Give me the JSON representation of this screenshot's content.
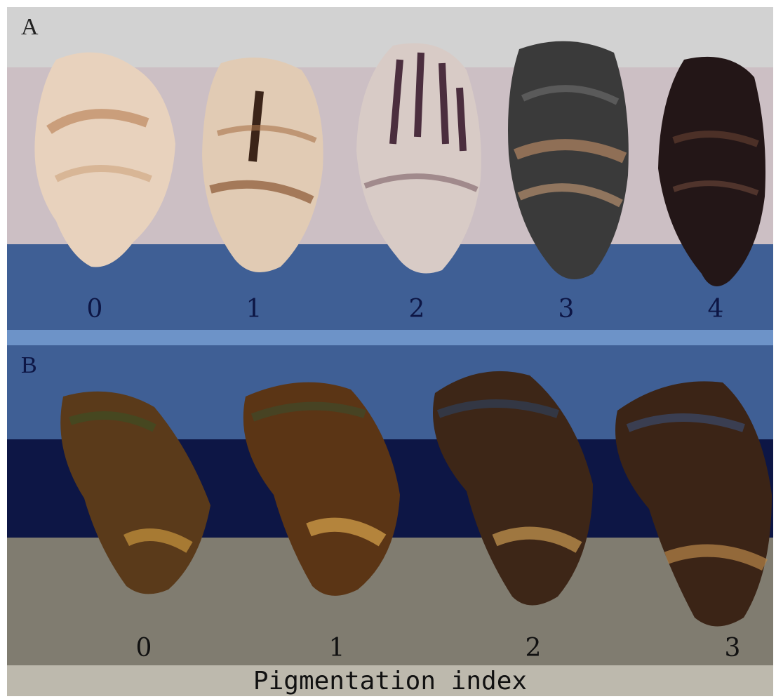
{
  "panel_a": {
    "letter": "A",
    "labels": [
      "0",
      "1",
      "2",
      "3",
      "4"
    ]
  },
  "panel_b": {
    "letter": "B",
    "labels": [
      "0",
      "1",
      "2",
      "3"
    ]
  },
  "axis_caption": "Pigmentation index",
  "colors": {
    "band_top": "#d2d2d2",
    "band_pink": "#ccbfc4",
    "band_blue": "#3f5f95",
    "band_light_blue": "#6d93c8",
    "band_navy": "#0d1645",
    "band_grey": "#807c70",
    "shell_light": "#e6d7c7",
    "shell_dark": "#2b1e1e"
  }
}
